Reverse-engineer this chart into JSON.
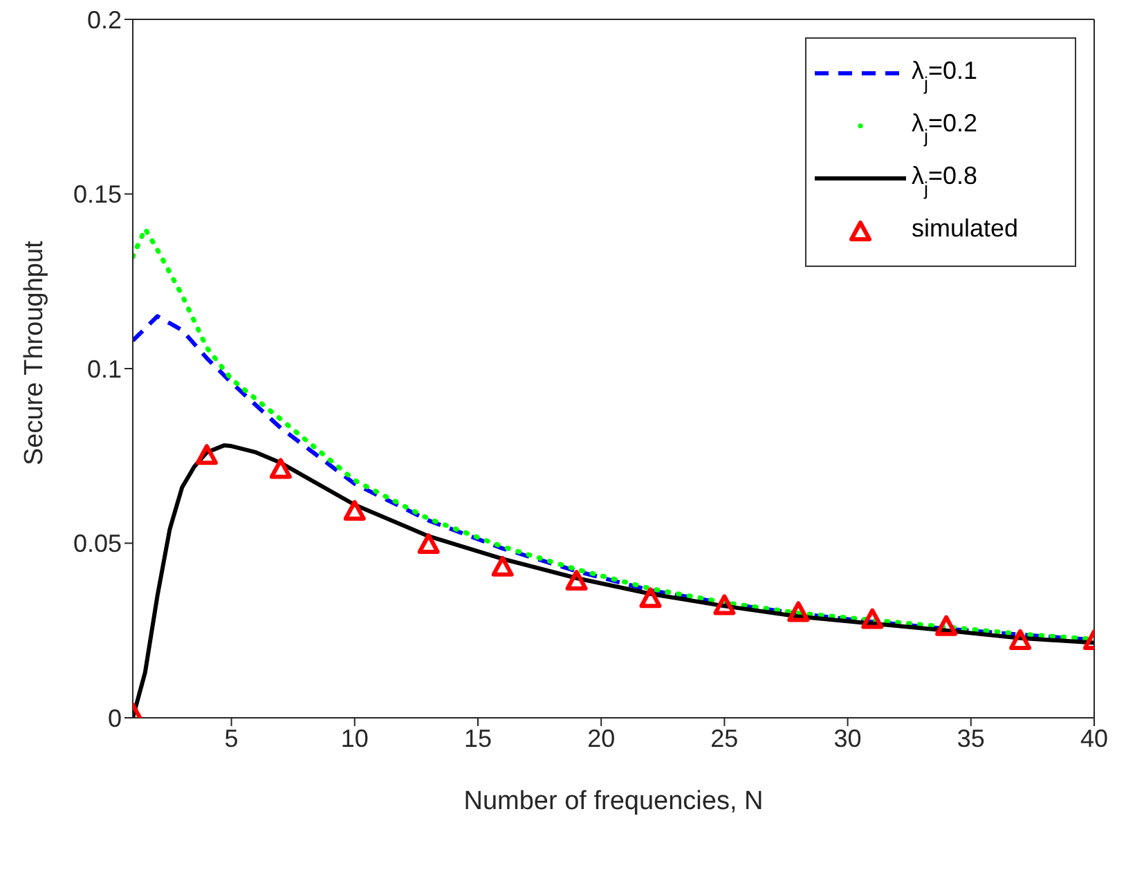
{
  "chart_data": {
    "type": "line",
    "xlabel": "Number of frequencies, N",
    "ylabel": "Secure Throughput",
    "xlim": [
      1,
      40
    ],
    "xticks": [
      5,
      10,
      15,
      20,
      25,
      30,
      35,
      40
    ],
    "ylim": [
      0,
      0.2
    ],
    "yticks": [
      0,
      0.05,
      0.1,
      0.15,
      0.2
    ],
    "legend": "top right",
    "series": [
      {
        "name": "λ$_{j}$=0.1",
        "color": "#0000ff",
        "line_style": "dashed",
        "marker": "none",
        "x": [
          1,
          2,
          3,
          4,
          5,
          7,
          10,
          13,
          16,
          19,
          22,
          25,
          28,
          31,
          34,
          37,
          40
        ],
        "values": [
          0.108,
          0.115,
          0.111,
          0.103,
          0.096,
          0.083,
          0.067,
          0.0565,
          0.0485,
          0.042,
          0.0365,
          0.0328,
          0.0298,
          0.0275,
          0.0255,
          0.0238,
          0.0223
        ]
      },
      {
        "name": "λ$_{j}$=0.2",
        "color": "#00ff00",
        "line_style": "dotted",
        "marker": "none",
        "x": [
          1,
          1.5,
          2,
          3,
          4,
          5,
          7,
          10,
          13,
          16,
          19,
          22,
          25,
          28,
          31,
          34,
          37,
          40
        ],
        "values": [
          0.132,
          0.14,
          0.134,
          0.121,
          0.106,
          0.097,
          0.0855,
          0.068,
          0.057,
          0.049,
          0.0425,
          0.037,
          0.033,
          0.03,
          0.028,
          0.026,
          0.024,
          0.0225
        ]
      },
      {
        "name": "λ$_{j}$=0.8",
        "color": "#000000",
        "line_style": "solid",
        "marker": "none",
        "x": [
          1,
          1.5,
          2,
          2.5,
          3,
          3.5,
          4,
          4.7,
          5,
          6,
          7,
          10,
          13,
          16,
          19,
          22,
          25,
          28,
          31,
          34,
          37,
          40
        ],
        "values": [
          0,
          0.013,
          0.035,
          0.054,
          0.066,
          0.072,
          0.076,
          0.078,
          0.0778,
          0.076,
          0.073,
          0.061,
          0.052,
          0.0455,
          0.04,
          0.0355,
          0.032,
          0.029,
          0.027,
          0.025,
          0.0228,
          0.0215
        ]
      },
      {
        "name": "simulated",
        "type": "scatter",
        "color": "#ff0000",
        "marker": "triangle",
        "x": [
          1,
          4,
          7,
          10,
          13,
          16,
          19,
          22,
          25,
          28,
          31,
          34,
          37,
          40
        ],
        "values": [
          0.001,
          0.075,
          0.071,
          0.059,
          0.0495,
          0.043,
          0.039,
          0.034,
          0.032,
          0.03,
          0.028,
          0.026,
          0.022,
          0.022
        ]
      }
    ]
  }
}
